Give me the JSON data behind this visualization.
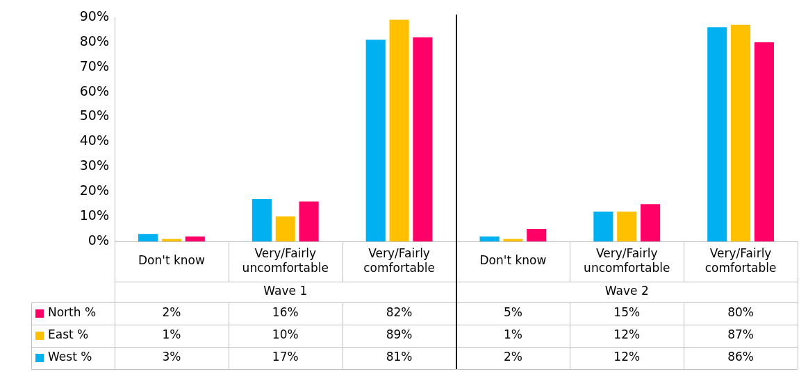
{
  "chart_data": {
    "type": "bar",
    "categories": [
      "Don't know",
      "Very/Fairly uncomfortable",
      "Very/Fairly comfortable",
      "Don't know",
      "Very/Fairly uncomfortable",
      "Very/Fairly comfortable"
    ],
    "series": [
      {
        "name": "West %",
        "color": "#00b0f0",
        "values": [
          3,
          17,
          81,
          2,
          12,
          86
        ],
        "value_labels": [
          "3%",
          "17%",
          "81%",
          "2%",
          "12%",
          "86%"
        ]
      },
      {
        "name": "East %",
        "color": "#ffc000",
        "values": [
          1,
          10,
          89,
          1,
          12,
          87
        ],
        "value_labels": [
          "1%",
          "10%",
          "89%",
          "1%",
          "12%",
          "87%"
        ]
      },
      {
        "name": "North %",
        "color": "#ff0066",
        "values": [
          2,
          16,
          82,
          5,
          15,
          80
        ],
        "value_labels": [
          "2%",
          "16%",
          "82%",
          "5%",
          "15%",
          "80%"
        ]
      }
    ],
    "ylim": [
      0,
      90
    ],
    "yticks": [
      {
        "value": 0,
        "label": "0%"
      },
      {
        "value": 10,
        "label": "10%"
      },
      {
        "value": 20,
        "label": "20%"
      },
      {
        "value": 30,
        "label": "30%"
      },
      {
        "value": 40,
        "label": "40%"
      },
      {
        "value": 50,
        "label": "50%"
      },
      {
        "value": 60,
        "label": "60%"
      },
      {
        "value": 70,
        "label": "70%"
      },
      {
        "value": 80,
        "label": "80%"
      },
      {
        "value": 90,
        "label": "90%"
      }
    ],
    "annotations": [
      "Wave 1",
      "Wave 2"
    ],
    "legend": "bottom left",
    "grid": false
  }
}
